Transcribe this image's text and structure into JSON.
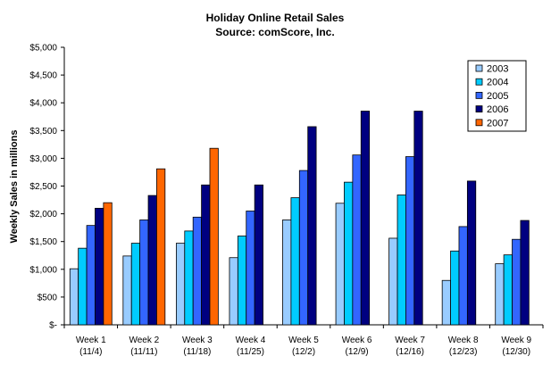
{
  "chart_data": {
    "type": "bar",
    "title": "Holiday Online Retail Sales",
    "subtitle": "Source: comScore, Inc.",
    "xlabel": "",
    "ylabel": "Weekly Sales in millions",
    "ylim": [
      0,
      5000
    ],
    "yticks": [
      0,
      500,
      1000,
      1500,
      2000,
      2500,
      3000,
      3500,
      4000,
      4500,
      5000
    ],
    "ytick_labels": [
      "$-",
      "$500",
      "$1,000",
      "$1,500",
      "$2,000",
      "$2,500",
      "$3,000",
      "$3,500",
      "$4,000",
      "$4,500",
      "$5,000"
    ],
    "grid": false,
    "legend_position": "top-right",
    "categories": [
      "Week 1",
      "Week 2",
      "Week 3",
      "Week 4",
      "Week 5",
      "Week 6",
      "Week 7",
      "Week 8",
      "Week 9"
    ],
    "category_dates": [
      "(11/4)",
      "(11/11)",
      "(11/18)",
      "(11/25)",
      "(12/2)",
      "(12/9)",
      "(12/16)",
      "(12/23)",
      "(12/30)"
    ],
    "series": [
      {
        "name": "2003",
        "color": "#99ccff",
        "values": [
          1010,
          1240,
          1470,
          1210,
          1890,
          2190,
          1560,
          800,
          1100
        ]
      },
      {
        "name": "2004",
        "color": "#00ccff",
        "values": [
          1380,
          1470,
          1690,
          1600,
          2290,
          2570,
          2340,
          1330,
          1260
        ]
      },
      {
        "name": "2005",
        "color": "#3366ff",
        "values": [
          1790,
          1890,
          1940,
          2050,
          2780,
          3060,
          3030,
          1770,
          1540
        ]
      },
      {
        "name": "2006",
        "color": "#000080",
        "values": [
          2100,
          2330,
          2520,
          2520,
          3570,
          3850,
          3850,
          2590,
          1880
        ]
      },
      {
        "name": "2007",
        "color": "#ff6600",
        "values": [
          2200,
          2810,
          3180,
          null,
          null,
          null,
          null,
          null,
          null
        ]
      }
    ]
  }
}
